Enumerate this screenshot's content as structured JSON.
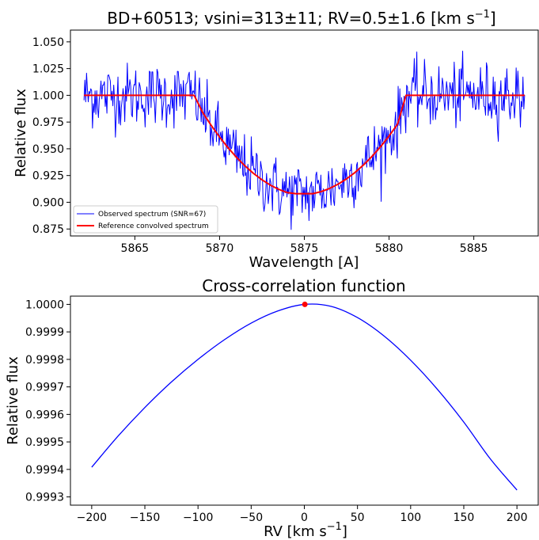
{
  "chart_data": [
    {
      "type": "line",
      "title": "BD+60513; vsini=313±11; RV=0.5±1.6 [km s",
      "title_sup": "−1",
      "title_end": "]",
      "xlabel": "Wavelength [A]",
      "ylabel": "Relative flux",
      "xlim": [
        5861.2,
        5888.8
      ],
      "ylim": [
        0.8685,
        1.061
      ],
      "xticks": [
        5865,
        5870,
        5875,
        5880,
        5885
      ],
      "xtick_labels": [
        "5865",
        "5870",
        "5875",
        "5880",
        "5885"
      ],
      "yticks": [
        0.875,
        0.9,
        0.925,
        0.95,
        0.975,
        1.0,
        1.025,
        1.05
      ],
      "ytick_labels": [
        "0.875",
        "0.900",
        "0.925",
        "0.950",
        "0.975",
        "1.000",
        "1.025",
        "1.050"
      ],
      "legend": {
        "placement": "lower-left"
      },
      "series": [
        {
          "name": "Observed spectrum (SNR=67)",
          "color": "#0000ff",
          "noisy": true,
          "x_start": 5862.0,
          "x_end": 5888.0,
          "n_points": 520,
          "noise_sigma": 0.0149
        },
        {
          "name": "Reference convolved spectrum",
          "color": "#ff0000",
          "x": [
            5862.0,
            5868.5,
            5869.0,
            5869.5,
            5870.0,
            5870.5,
            5871.0,
            5871.5,
            5872.0,
            5872.5,
            5873.0,
            5873.5,
            5874.0,
            5874.5,
            5875.0,
            5875.5,
            5876.0,
            5876.5,
            5877.0,
            5877.5,
            5878.0,
            5878.5,
            5879.0,
            5879.5,
            5880.0,
            5880.5,
            5881.0,
            5888.0
          ],
          "y": [
            1.0,
            1.0,
            0.984,
            0.972,
            0.961,
            0.951,
            0.942,
            0.934,
            0.927,
            0.921,
            0.916,
            0.912,
            0.909,
            0.908,
            0.908,
            0.908,
            0.91,
            0.913,
            0.917,
            0.922,
            0.928,
            0.935,
            0.943,
            0.952,
            0.962,
            0.973,
            1.0,
            1.0
          ]
        }
      ]
    },
    {
      "type": "line",
      "title": "Cross-correlation function",
      "xlabel": "RV [km s",
      "xlabel_sup": "−1",
      "xlabel_end": "]",
      "ylabel": "Relative flux",
      "xlim": [
        -220,
        220
      ],
      "ylim": [
        0.99927,
        1.00003
      ],
      "xticks": [
        -200,
        -150,
        -100,
        -50,
        0,
        50,
        100,
        150,
        200
      ],
      "xtick_labels": [
        "−200",
        "−150",
        "−100",
        "−50",
        "0",
        "50",
        "100",
        "150",
        "200"
      ],
      "yticks": [
        0.9993,
        0.9994,
        0.9995,
        0.9996,
        0.9997,
        0.9998,
        0.9999,
        1.0
      ],
      "ytick_labels": [
        "0.9993",
        "0.9994",
        "0.9995",
        "0.9996",
        "0.9997",
        "0.9998",
        "0.9999",
        "1.0000"
      ],
      "series": [
        {
          "color": "#0000ff",
          "x": [
            -200,
            -175,
            -150,
            -125,
            -100,
            -75,
            -50,
            -25,
            0,
            25,
            50,
            75,
            100,
            125,
            150,
            175,
            200
          ],
          "y": [
            0.999408,
            0.999522,
            0.999625,
            0.999718,
            0.9998,
            0.999872,
            0.999932,
            0.999976,
            1.0,
            0.999993,
            0.999952,
            0.999885,
            0.999797,
            0.999692,
            0.999572,
            0.999438,
            0.999325
          ]
        }
      ],
      "peak": {
        "x": 0.5,
        "y": 1.0,
        "color": "#ff0000"
      }
    }
  ]
}
